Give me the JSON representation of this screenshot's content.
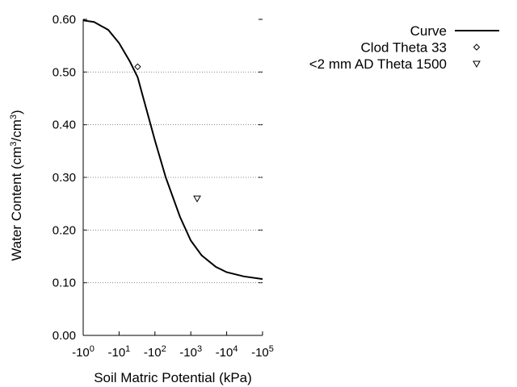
{
  "chart_data": {
    "type": "line",
    "x_label": "Soil Matric Potential (kPa)",
    "y_label": [
      "Water Content (cm",
      "3",
      "/cm",
      "3",
      ")"
    ],
    "xlim": [
      -1,
      -100000
    ],
    "xscale": "log",
    "xticks": [
      {
        "value": -1,
        "label": "-10",
        "exponent": "0"
      },
      {
        "value": -10,
        "label": "-10",
        "exponent": "1"
      },
      {
        "value": -100,
        "label": "-10",
        "exponent": "2"
      },
      {
        "value": -1000,
        "label": "-10",
        "exponent": "3"
      },
      {
        "value": -10000,
        "label": "-10",
        "exponent": "4"
      },
      {
        "value": -100000,
        "label": "-10",
        "exponent": "5"
      }
    ],
    "ylim": [
      0,
      0.6
    ],
    "yticks": [
      {
        "value": 0,
        "label": "0.00"
      },
      {
        "value": 0.1,
        "label": "0.10"
      },
      {
        "value": 0.2,
        "label": "0.20"
      },
      {
        "value": 0.3,
        "label": "0.30"
      },
      {
        "value": 0.4,
        "label": "0.40"
      },
      {
        "value": 0.5,
        "label": "0.50"
      },
      {
        "value": 0.6,
        "label": "0.60"
      }
    ],
    "grid": true,
    "legend": "upper right",
    "series": [
      {
        "name": "Curve",
        "type": "line",
        "color": "#000000",
        "x": [
          -1,
          -2,
          -5,
          -10,
          -20,
          -33,
          -50,
          -100,
          -200,
          -500,
          -1000,
          -2000,
          -5000,
          -10000,
          -30000,
          -100000
        ],
        "values": [
          0.598,
          0.595,
          0.58,
          0.555,
          0.52,
          0.49,
          0.445,
          0.37,
          0.3,
          0.225,
          0.18,
          0.152,
          0.13,
          0.12,
          0.112,
          0.107
        ]
      },
      {
        "name": "Clod Theta 33",
        "type": "scatter",
        "marker": "diamond",
        "color": "#000000",
        "x": [
          -33
        ],
        "values": [
          0.51
        ]
      },
      {
        "name": "<2 mm AD Theta 1500",
        "type": "scatter",
        "marker": "triangle-down",
        "color": "#000000",
        "x": [
          -1500
        ],
        "values": [
          0.26
        ]
      }
    ]
  }
}
